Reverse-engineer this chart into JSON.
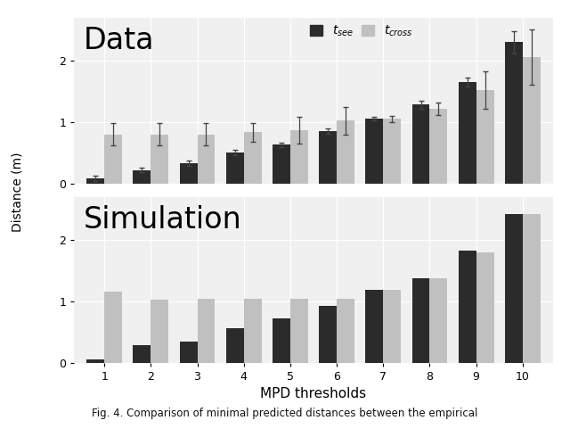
{
  "categories": [
    1,
    2,
    3,
    4,
    5,
    6,
    7,
    8,
    9,
    10
  ],
  "data_tsee": [
    0.08,
    0.22,
    0.33,
    0.5,
    0.63,
    0.85,
    1.05,
    1.28,
    1.65,
    2.3
  ],
  "data_tcross": [
    0.8,
    0.8,
    0.8,
    0.83,
    0.87,
    1.02,
    1.05,
    1.22,
    1.52,
    2.06
  ],
  "data_tsee_err": [
    0.04,
    0.03,
    0.05,
    0.04,
    0.04,
    0.04,
    0.03,
    0.07,
    0.07,
    0.18
  ],
  "data_tcross_err": [
    0.18,
    0.18,
    0.18,
    0.15,
    0.22,
    0.22,
    0.05,
    0.1,
    0.3,
    0.45
  ],
  "sim_tsee": [
    0.06,
    0.28,
    0.35,
    0.56,
    0.72,
    0.93,
    1.18,
    1.38,
    1.82,
    2.42
  ],
  "sim_tcross": [
    1.15,
    1.02,
    1.04,
    1.04,
    1.04,
    1.04,
    1.18,
    1.38,
    1.8,
    2.42
  ],
  "color_tsee": "#2b2b2b",
  "color_tcross": "#c0c0c0",
  "background_color": "#f0f0f0",
  "bar_width": 0.38,
  "title_data": "Data",
  "title_sim": "Simulation",
  "xlabel": "MPD thresholds",
  "ylabel": "Distance (m)",
  "legend_tsee": "$t_{see}$",
  "legend_tcross": "$t_{cross}$",
  "ylim": [
    0,
    2.7
  ],
  "yticks": [
    0,
    1,
    2
  ],
  "caption": "Fig. 4. Comparison of minimal predicted distances between the empirical"
}
